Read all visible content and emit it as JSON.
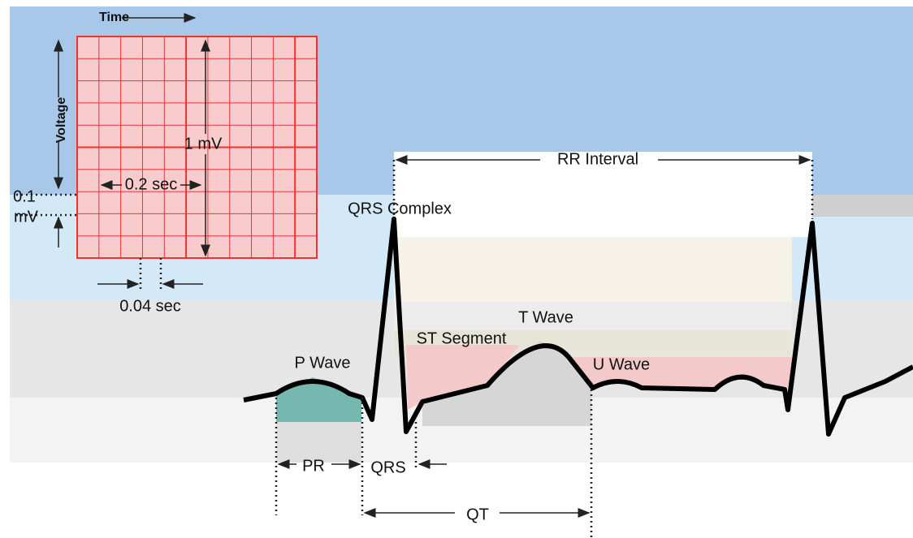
{
  "grid": {
    "time_label": "Time",
    "voltage_label": "Voltage",
    "amplitude_label": "1 mV",
    "large_box_label": "0.2 sec",
    "small_box_value": "0.1",
    "small_box_unit": "mV",
    "small_box_time": "0.04 sec"
  },
  "waves": {
    "rr_interval": "RR Interval",
    "qrs_complex": "QRS Complex",
    "t_wave": "T Wave",
    "st_segment": "ST Segment",
    "p_wave": "P Wave",
    "u_wave": "U Wave"
  },
  "intervals": {
    "pr": "PR",
    "qrs": "QRS",
    "qt": "QT"
  }
}
